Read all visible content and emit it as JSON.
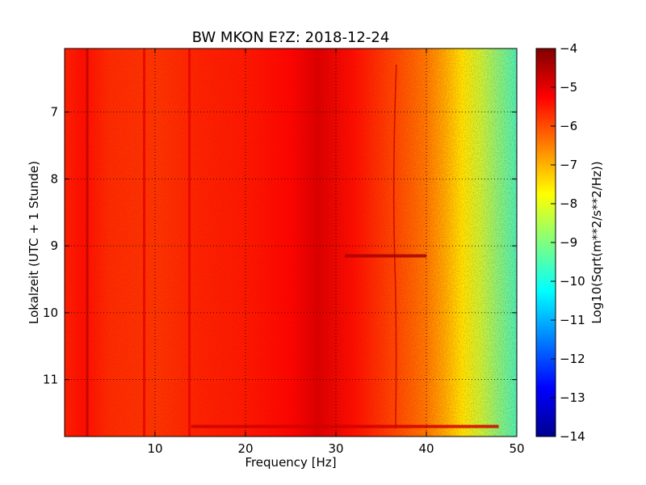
{
  "chart_data": {
    "type": "heatmap",
    "title": "BW MKON E?Z: 2018-12-24",
    "xlabel": "Frequency [Hz]",
    "ylabel": "Lokalzeit (UTC + 1 Stunde)",
    "xlim": [
      0,
      50
    ],
    "ylim": [
      11.85,
      6.05
    ],
    "x_ticks": [
      10,
      20,
      30,
      40,
      50
    ],
    "y_ticks": [
      7,
      8,
      9,
      10,
      11
    ],
    "grid": true,
    "colormap": "jet",
    "colorbar": {
      "label": "Log10(Sqrt(m**2/s**2/Hz))",
      "range": [
        -14,
        -4
      ],
      "ticks": [
        -4,
        -5,
        -6,
        -7,
        -8,
        -9,
        -10,
        -11,
        -12,
        -13,
        -14
      ]
    },
    "spectrum_profile": {
      "frequency_hz": [
        0,
        2,
        5,
        10,
        15,
        20,
        25,
        28,
        32,
        35,
        38,
        40,
        42,
        44,
        46,
        48,
        50
      ],
      "log10_psd": [
        -5.6,
        -5.4,
        -5.7,
        -5.8,
        -5.6,
        -5.5,
        -5.3,
        -4.9,
        -5.4,
        -5.8,
        -6.2,
        -6.5,
        -7.0,
        -7.6,
        -8.3,
        -9.0,
        -9.6
      ]
    },
    "vertical_features": [
      {
        "frequency_hz": 2.5,
        "log10_psd": -4.6
      },
      {
        "frequency_hz": 8.8,
        "log10_psd": -5.0
      },
      {
        "frequency_hz": 13.8,
        "log10_psd": -5.0
      },
      {
        "frequency_hz": 36.5,
        "log10_psd": -4.7
      }
    ],
    "horizontal_features": [
      {
        "time": 9.15,
        "freq_range": [
          31,
          40
        ],
        "log10_psd": -4.4
      },
      {
        "time": 11.7,
        "freq_range": [
          14,
          48
        ],
        "log10_psd": -4.8
      }
    ]
  }
}
